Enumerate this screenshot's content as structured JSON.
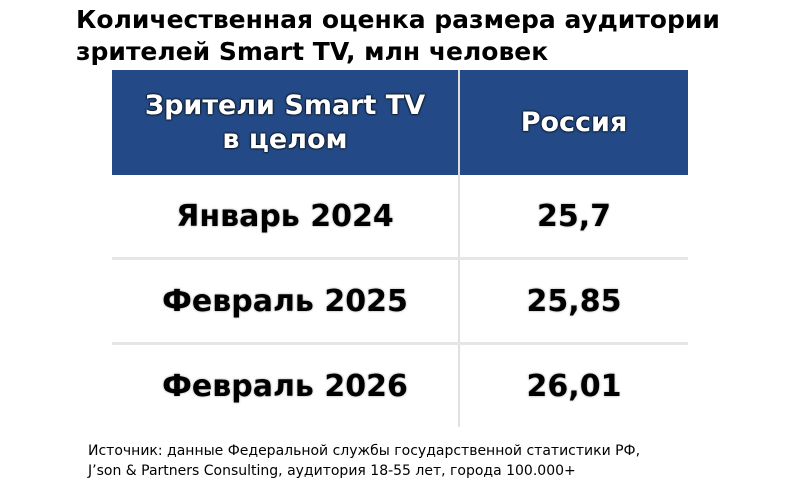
{
  "title": {
    "line1": "Количественная оценка размера аудитории",
    "line2": "зрителей Smart TV, млн человек"
  },
  "header": {
    "col1_line1": "Зрители Smart TV",
    "col1_line2": "в целом",
    "col2": "Россия"
  },
  "rows": [
    {
      "period": "Январь 2024",
      "value": "25,7"
    },
    {
      "period": "Февраль 2025",
      "value": "25,85"
    },
    {
      "period": "Февраль 2026",
      "value": "26,01"
    }
  ],
  "source": {
    "line1": "Источник: данные Федеральной службы государственной статистики РФ,",
    "line2": "J’son & Partners Consulting, аудитория 18-55 лет, города 100.000+"
  },
  "colors": {
    "header_background": "#234a86",
    "header_text": "#ffffff",
    "row_background": "#ffffff",
    "divider": "#e6e6e6"
  },
  "chart_data": {
    "type": "table",
    "title": "Количественная оценка размера аудитории зрителей Smart TV, млн человек",
    "columns": [
      "Зрители Smart TV в целом",
      "Россия"
    ],
    "categories": [
      "Январь 2024",
      "Февраль 2025",
      "Февраль 2026"
    ],
    "series": [
      {
        "name": "Россия",
        "values": [
          25.7,
          25.85,
          26.01
        ]
      }
    ],
    "unit": "млн человек"
  }
}
